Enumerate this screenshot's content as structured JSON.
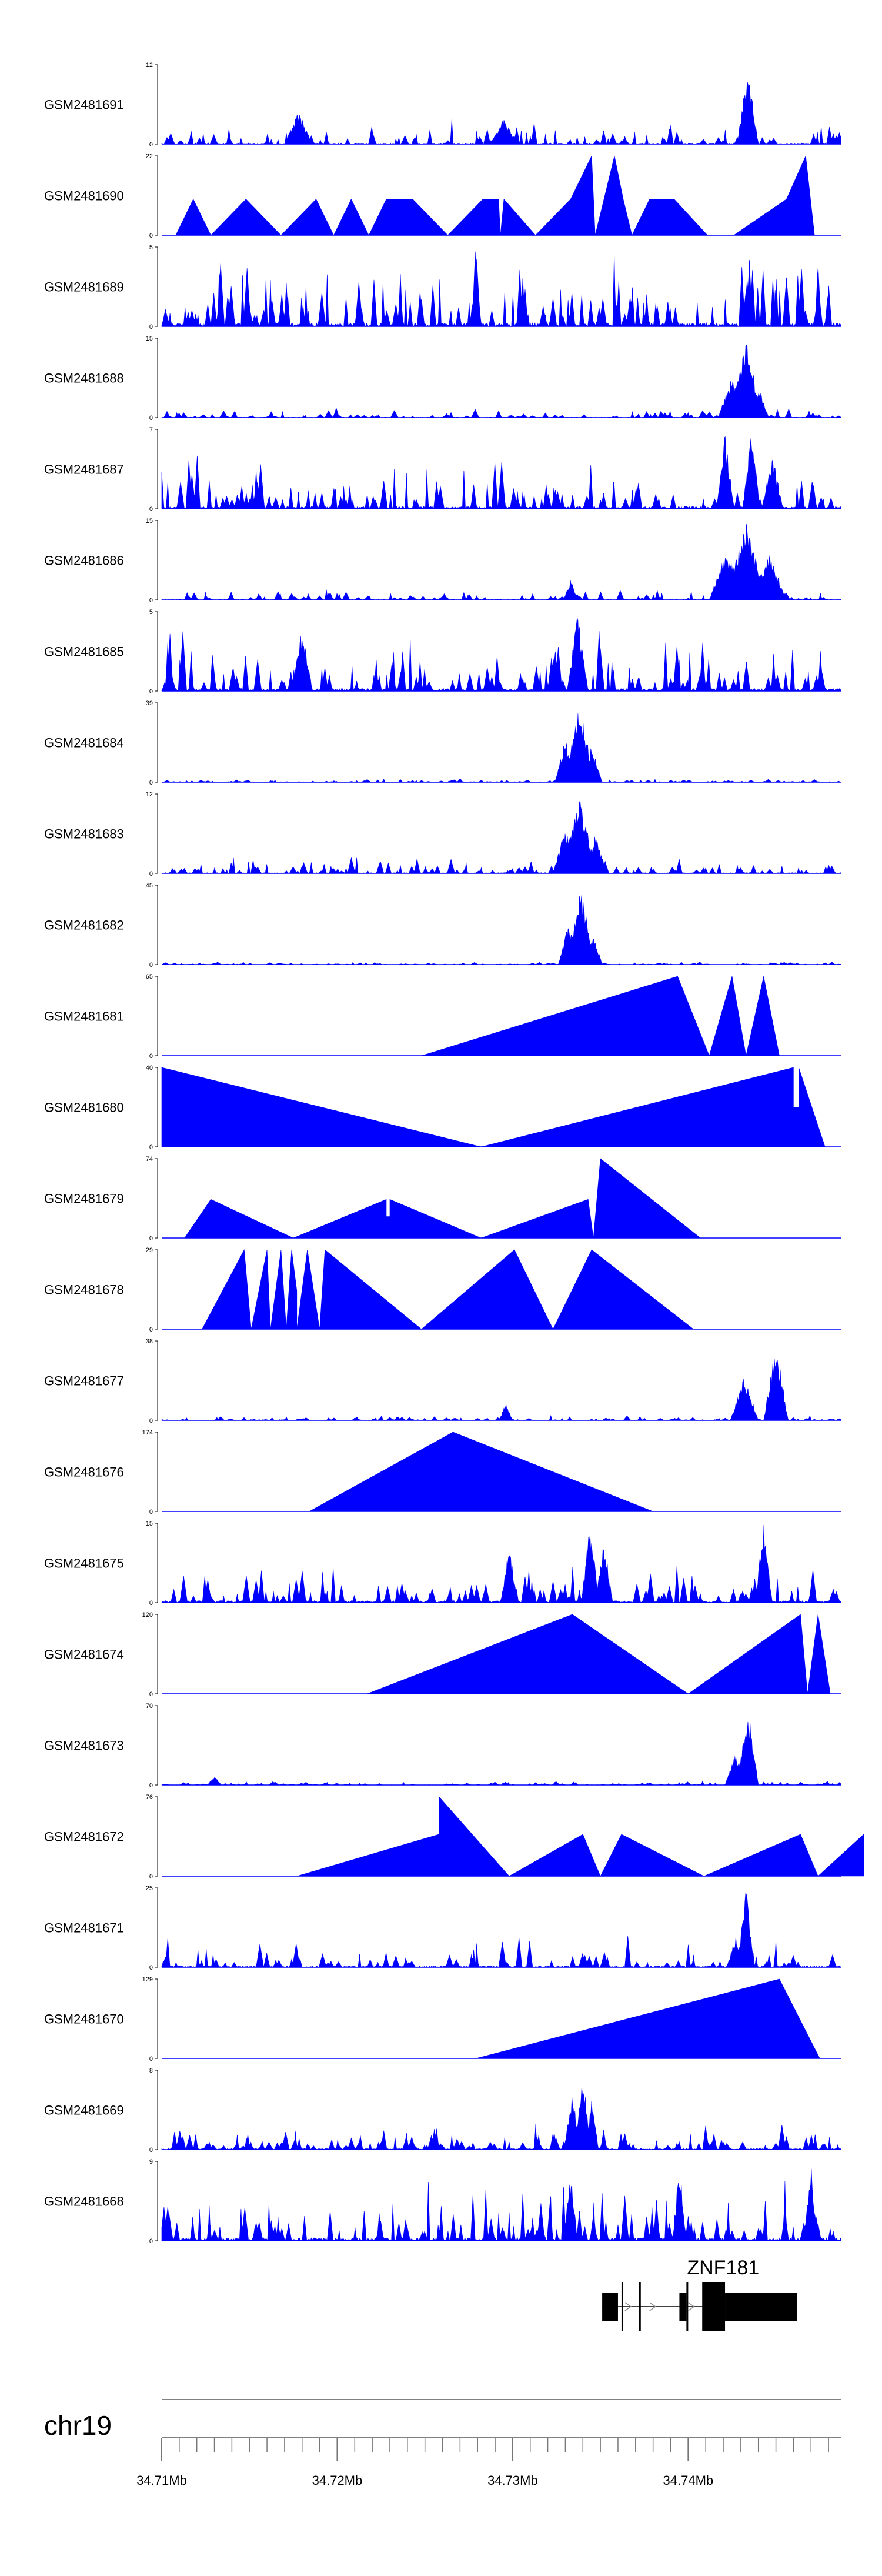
{
  "chart_data": {
    "type": "area",
    "chromosome": "chr19",
    "x_range_mb": [
      34.71,
      34.7487
    ],
    "x_ticks": [
      {
        "pos": 34.71,
        "label": "34.71Mb"
      },
      {
        "pos": 34.72,
        "label": "34.72Mb"
      },
      {
        "pos": 34.73,
        "label": "34.73Mb"
      },
      {
        "pos": 34.74,
        "label": "34.74Mb"
      }
    ],
    "series_color": "#0000ff",
    "tracks": [
      {
        "name": "GSM2481691",
        "ymax": 12,
        "yticks": [
          "0",
          "12"
        ],
        "style": "spiky",
        "density": 90,
        "base": 0.18,
        "peaks": [
          [
            34.7434,
            12,
            0.0006
          ],
          [
            34.7178,
            5,
            0.0008
          ],
          [
            34.7295,
            4,
            0.0008
          ]
        ]
      },
      {
        "name": "GSM2481690",
        "ymax": 22,
        "yticks": [
          "0",
          "22"
        ],
        "style": "triangles",
        "points": [
          [
            34.7108,
            0
          ],
          [
            34.7118,
            10
          ],
          [
            34.7128,
            0
          ],
          [
            34.7148,
            10
          ],
          [
            34.7168,
            0
          ],
          [
            34.7188,
            10
          ],
          [
            34.7198,
            0
          ],
          [
            34.7208,
            10
          ],
          [
            34.7218,
            0
          ],
          [
            34.7228,
            10
          ],
          [
            34.7243,
            10
          ],
          [
            34.7263,
            0
          ],
          [
            34.7283,
            10
          ],
          [
            34.7292,
            10
          ],
          [
            34.7293,
            0
          ],
          [
            34.7295,
            10
          ],
          [
            34.7313,
            0
          ],
          [
            34.7333,
            10
          ],
          [
            34.7345,
            22
          ],
          [
            34.7347,
            0
          ],
          [
            34.7358,
            22
          ],
          [
            34.7363,
            10
          ],
          [
            34.7368,
            0
          ],
          [
            34.7378,
            10
          ],
          [
            34.7392,
            10
          ],
          [
            34.7411,
            0
          ],
          [
            34.7426,
            0
          ],
          [
            34.7456,
            10
          ],
          [
            34.7467,
            22
          ],
          [
            34.7472,
            0
          ]
        ]
      },
      {
        "name": "GSM2481689",
        "ymax": 5,
        "yticks": [
          "0",
          "5"
        ],
        "style": "spiky",
        "density": 130,
        "base": 0.55,
        "peaks": []
      },
      {
        "name": "GSM2481688",
        "ymax": 15,
        "yticks": [
          "0",
          "15"
        ],
        "style": "spiky",
        "density": 110,
        "base": 0.07,
        "peaks": [
          [
            34.7433,
            15,
            0.0009
          ],
          [
            34.7425,
            8,
            0.0008
          ],
          [
            34.744,
            6,
            0.0006
          ]
        ]
      },
      {
        "name": "GSM2481687",
        "ymax": 7,
        "yticks": [
          "0",
          "7"
        ],
        "style": "spiky",
        "density": 120,
        "base": 0.38,
        "peaks": [
          [
            34.7421,
            7,
            0.0005
          ],
          [
            34.7436,
            7,
            0.0005
          ],
          [
            34.7448,
            5,
            0.0006
          ]
        ]
      },
      {
        "name": "GSM2481686",
        "ymax": 15,
        "yticks": [
          "0",
          "15"
        ],
        "style": "spiky",
        "density": 110,
        "base": 0.08,
        "peaks": [
          [
            34.7433,
            15,
            0.0012
          ],
          [
            34.7422,
            10,
            0.001
          ],
          [
            34.7446,
            9,
            0.001
          ],
          [
            34.7333,
            4,
            0.0004
          ]
        ]
      },
      {
        "name": "GSM2481685",
        "ymax": 5,
        "yticks": [
          "0",
          "5"
        ],
        "style": "spiky",
        "density": 120,
        "base": 0.42,
        "peaks": [
          [
            34.7337,
            5,
            0.0006
          ],
          [
            34.718,
            4,
            0.0006
          ]
        ]
      },
      {
        "name": "GSM2481684",
        "ymax": 39,
        "yticks": [
          "0",
          "39"
        ],
        "style": "spiky",
        "density": 140,
        "base": 0.025,
        "peaks": [
          [
            34.7338,
            39,
            0.0009
          ],
          [
            34.733,
            22,
            0.0006
          ],
          [
            34.7345,
            18,
            0.0006
          ]
        ]
      },
      {
        "name": "GSM2481683",
        "ymax": 12,
        "yticks": [
          "0",
          "12"
        ],
        "style": "spiky",
        "density": 120,
        "base": 0.12,
        "peaks": [
          [
            34.7338,
            12,
            0.001
          ],
          [
            34.733,
            7,
            0.0007
          ],
          [
            34.7347,
            6,
            0.0007
          ]
        ]
      },
      {
        "name": "GSM2481682",
        "ymax": 45,
        "yticks": [
          "0",
          "45"
        ],
        "style": "spiky",
        "density": 140,
        "base": 0.02,
        "peaks": [
          [
            34.7339,
            45,
            0.0008
          ],
          [
            34.7332,
            25,
            0.0006
          ],
          [
            34.7346,
            18,
            0.0005
          ]
        ]
      },
      {
        "name": "GSM2481681",
        "ymax": 65,
        "yticks": [
          "0",
          "65"
        ],
        "style": "triangles",
        "points": [
          [
            34.7248,
            0
          ],
          [
            34.7394,
            65
          ],
          [
            34.7412,
            0
          ],
          [
            34.7425,
            65
          ],
          [
            34.7433,
            0
          ],
          [
            34.7443,
            65
          ],
          [
            34.7452,
            0
          ],
          [
            34.7471,
            0
          ]
        ]
      },
      {
        "name": "GSM2481680",
        "ymax": 40,
        "yticks": [
          "0",
          "40"
        ],
        "style": "triangles",
        "points": [
          [
            34.71,
            0
          ],
          [
            34.71,
            40
          ],
          [
            34.7282,
            0
          ],
          [
            34.746,
            40
          ],
          [
            34.746,
            20
          ],
          [
            34.7463,
            20
          ],
          [
            34.7463,
            40
          ],
          [
            34.7478,
            0
          ]
        ]
      },
      {
        "name": "GSM2481679",
        "ymax": 74,
        "yticks": [
          "0",
          "74"
        ],
        "style": "triangles",
        "points": [
          [
            34.7113,
            0
          ],
          [
            34.7128,
            36
          ],
          [
            34.7175,
            0
          ],
          [
            34.7228,
            36
          ],
          [
            34.7228,
            20
          ],
          [
            34.723,
            20
          ],
          [
            34.723,
            36
          ],
          [
            34.7282,
            0
          ],
          [
            34.7343,
            36
          ],
          [
            34.7346,
            0
          ],
          [
            34.735,
            74
          ],
          [
            34.7407,
            0
          ]
        ]
      },
      {
        "name": "GSM2481678",
        "ymax": 29,
        "yticks": [
          "0",
          "29"
        ],
        "style": "triangles",
        "points": [
          [
            34.7123,
            0
          ],
          [
            34.7147,
            29
          ],
          [
            34.7151,
            0
          ],
          [
            34.716,
            29
          ],
          [
            34.7162,
            0
          ],
          [
            34.7168,
            29
          ],
          [
            34.7171,
            0
          ],
          [
            34.7174,
            29
          ],
          [
            34.7177,
            14
          ],
          [
            34.7177,
            0
          ],
          [
            34.7183,
            29
          ],
          [
            34.719,
            0
          ],
          [
            34.7193,
            29
          ],
          [
            34.7248,
            0
          ],
          [
            34.7301,
            29
          ],
          [
            34.7323,
            0
          ],
          [
            34.7345,
            29
          ],
          [
            34.7403,
            0
          ]
        ]
      },
      {
        "name": "GSM2481677",
        "ymax": 38,
        "yticks": [
          "0",
          "38"
        ],
        "style": "spiky",
        "density": 130,
        "base": 0.035,
        "peaks": [
          [
            34.745,
            38,
            0.0007
          ],
          [
            34.7432,
            22,
            0.0008
          ],
          [
            34.7296,
            8,
            0.0004
          ]
        ]
      },
      {
        "name": "GSM2481676",
        "ymax": 174,
        "yticks": [
          "0",
          "174"
        ],
        "style": "triangles",
        "points": [
          [
            34.7184,
            0
          ],
          [
            34.7266,
            174
          ],
          [
            34.738,
            0
          ]
        ]
      },
      {
        "name": "GSM2481675",
        "ymax": 15,
        "yticks": [
          "0",
          "15"
        ],
        "style": "spiky",
        "density": 110,
        "base": 0.32,
        "peaks": [
          [
            34.7344,
            15,
            0.0005
          ],
          [
            34.7352,
            12,
            0.0005
          ],
          [
            34.7443,
            15,
            0.0005
          ],
          [
            34.7298,
            11,
            0.0005
          ]
        ]
      },
      {
        "name": "GSM2481674",
        "ymax": 120,
        "yticks": [
          "0",
          "120"
        ],
        "style": "triangles",
        "points": [
          [
            34.7217,
            0
          ],
          [
            34.7334,
            120
          ],
          [
            34.74,
            0
          ],
          [
            34.7464,
            120
          ],
          [
            34.7468,
            0
          ],
          [
            34.7474,
            120
          ],
          [
            34.7481,
            0
          ]
        ]
      },
      {
        "name": "GSM2481673",
        "ymax": 70,
        "yticks": [
          "0",
          "70"
        ],
        "style": "spiky",
        "density": 130,
        "base": 0.03,
        "peaks": [
          [
            34.7434,
            70,
            0.0006
          ],
          [
            34.7427,
            30,
            0.0006
          ],
          [
            34.713,
            8,
            0.0004
          ]
        ]
      },
      {
        "name": "GSM2481672",
        "ymax": 76,
        "yticks": [
          "0",
          "76"
        ],
        "style": "triangles",
        "points": [
          [
            34.7177,
            0
          ],
          [
            34.7258,
            40
          ],
          [
            34.7258,
            76
          ],
          [
            34.7298,
            0
          ],
          [
            34.734,
            40
          ],
          [
            34.735,
            0
          ],
          [
            34.7362,
            40
          ],
          [
            34.7409,
            0
          ],
          [
            34.7464,
            40
          ],
          [
            34.7474,
            0
          ],
          [
            34.75,
            40
          ],
          [
            34.75,
            0
          ]
        ]
      },
      {
        "name": "GSM2481671",
        "ymax": 25,
        "yticks": [
          "0",
          "25"
        ],
        "style": "spiky",
        "density": 90,
        "base": 0.22,
        "peaks": [
          [
            34.7433,
            25,
            0.0005
          ],
          [
            34.7427,
            10,
            0.0005
          ]
        ]
      },
      {
        "name": "GSM2481670",
        "ymax": 129,
        "yticks": [
          "0",
          "129"
        ],
        "style": "triangles",
        "points": [
          [
            34.7279,
            0
          ],
          [
            34.7452,
            129
          ],
          [
            34.7475,
            0
          ]
        ]
      },
      {
        "name": "GSM2481669",
        "ymax": 8,
        "yticks": [
          "0",
          "8"
        ],
        "style": "spiky",
        "density": 130,
        "base": 0.18,
        "peaks": [
          [
            34.734,
            8,
            0.0005
          ],
          [
            34.7334,
            6,
            0.0005
          ],
          [
            34.7345,
            5,
            0.0004
          ]
        ]
      },
      {
        "name": "GSM2481668",
        "ymax": 9,
        "yticks": [
          "0",
          "9"
        ],
        "style": "spiky",
        "density": 120,
        "base": 0.45,
        "peaks": [
          [
            34.7395,
            9,
            0.0004
          ],
          [
            34.747,
            9,
            0.0004
          ],
          [
            34.7333,
            8,
            0.0004
          ]
        ]
      }
    ],
    "gene": {
      "name": "ZNF181",
      "start": 34.7351,
      "end": 34.7462,
      "exons": [
        [
          34.7351,
          34.736
        ],
        [
          34.7362,
          34.7363
        ],
        [
          34.7372,
          34.7373
        ],
        [
          34.7395,
          34.7399
        ],
        [
          34.7399,
          34.74
        ],
        [
          34.7408,
          34.7421
        ],
        [
          34.7421,
          34.7462
        ]
      ],
      "intron_arrows": [
        34.7366,
        34.738,
        34.7402
      ]
    }
  }
}
